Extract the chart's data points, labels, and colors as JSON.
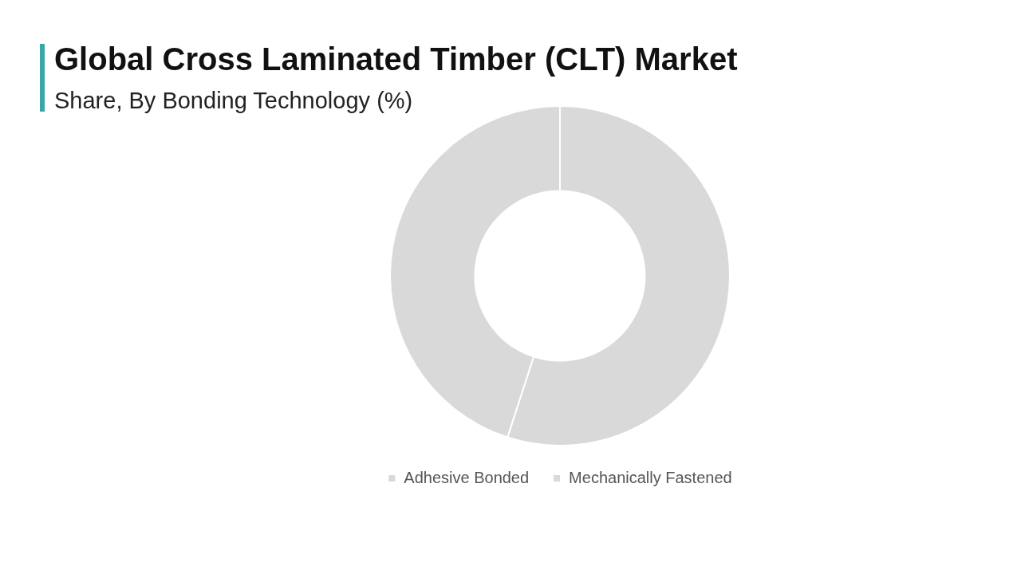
{
  "chart_data": {
    "type": "donut",
    "title": "Global Cross Laminated Timber (CLT) Market",
    "subtitle": "Share, By Bonding Technology (%)",
    "categories": [
      "Adhesive Bonded",
      "Mechanically Fastened"
    ],
    "values": [
      55,
      45
    ],
    "colors": [
      "#d9d9d9",
      "#d9d9d9"
    ],
    "legend": "bottom"
  }
}
